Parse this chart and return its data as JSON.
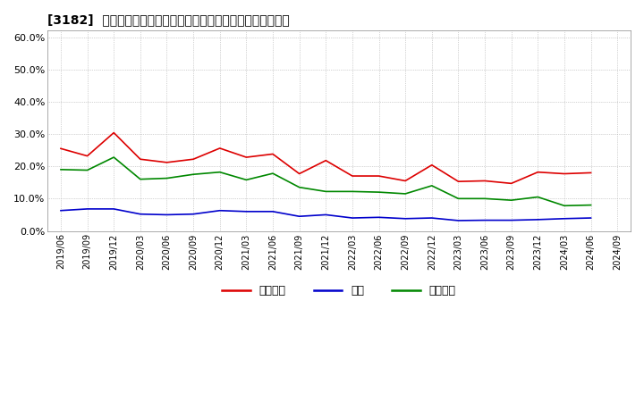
{
  "title": "[3182]  売上債権、在庫、買入債務の総資産に対する比率の推移",
  "ylim": [
    0.0,
    0.62
  ],
  "yticks": [
    0.0,
    0.1,
    0.2,
    0.3,
    0.4,
    0.5,
    0.6
  ],
  "background_color": "#ffffff",
  "grid_color": "#aaaaaa",
  "legend_labels": [
    "売上債権",
    "在庫",
    "買入債務"
  ],
  "line_colors": [
    "#dd0000",
    "#0000cc",
    "#008800"
  ],
  "dates": [
    "2019/06",
    "2019/09",
    "2019/12",
    "2020/03",
    "2020/06",
    "2020/09",
    "2020/12",
    "2021/03",
    "2021/06",
    "2021/09",
    "2021/12",
    "2022/03",
    "2022/06",
    "2022/09",
    "2022/12",
    "2023/03",
    "2023/06",
    "2023/09",
    "2023/12",
    "2024/03",
    "2024/06",
    "2024/09"
  ],
  "extra_date": "2024/09",
  "売上債権": [
    0.255,
    0.232,
    0.304,
    0.222,
    0.212,
    0.222,
    0.256,
    0.228,
    0.238,
    0.177,
    0.218,
    0.17,
    0.17,
    0.155,
    0.204,
    0.153,
    0.155,
    0.147,
    0.182,
    0.177,
    0.18,
    null
  ],
  "在庫": [
    0.063,
    0.068,
    0.068,
    0.052,
    0.05,
    0.052,
    0.063,
    0.06,
    0.06,
    0.045,
    0.05,
    0.04,
    0.042,
    0.038,
    0.04,
    0.032,
    0.033,
    0.033,
    0.035,
    0.038,
    0.04,
    null
  ],
  "買入債務": [
    0.19,
    0.188,
    0.228,
    0.16,
    0.163,
    0.175,
    0.182,
    0.158,
    0.178,
    0.135,
    0.122,
    0.122,
    0.12,
    0.115,
    0.14,
    0.1,
    0.1,
    0.095,
    0.105,
    0.078,
    0.08,
    null
  ]
}
